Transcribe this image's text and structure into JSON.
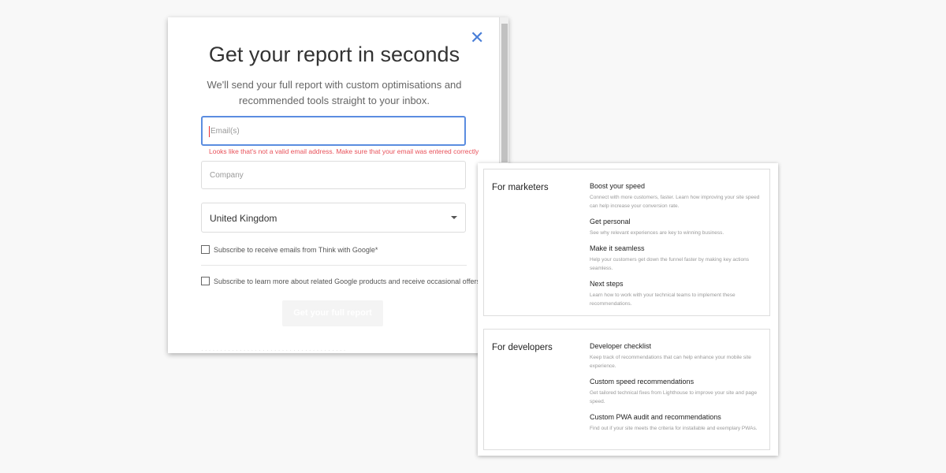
{
  "modal": {
    "title": "Get your report in seconds",
    "subtitle": "We'll send your full report with custom optimisations and recommended tools straight to your inbox.",
    "email_placeholder": "Email(s)",
    "email_error": "Looks like that's not a valid email address. Make sure that your email was entered correctly",
    "company_placeholder": "Company",
    "country": "United Kingdom",
    "checkbox1": "Subscribe to receive emails from Think with Google*",
    "checkbox2": "Subscribe to learn more about related Google products and receive occasional offers*",
    "submit": "Get your full report",
    "close_icon": "close-icon"
  },
  "marketers": {
    "label": "For marketers",
    "items": [
      {
        "title": "Boost your speed",
        "desc": "Connect with more customers, faster. Learn how improving your site speed can help increase your conversion rate."
      },
      {
        "title": "Get personal",
        "desc": "See why relevant experiences are key to winning business."
      },
      {
        "title": "Make it seamless",
        "desc": "Help your customers get down the funnel faster by making key actions seamless."
      },
      {
        "title": "Next steps",
        "desc": "Learn how to work with your technical teams to implement these recommendations."
      }
    ]
  },
  "developers": {
    "label": "For developers",
    "items": [
      {
        "title": "Developer checklist",
        "desc": "Keep track of recommendations that can help enhance your mobile site experience."
      },
      {
        "title": "Custom speed recommendations",
        "desc": "Get tailored technical fixes from Lighthouse to improve your site and page speed."
      },
      {
        "title": "Custom PWA audit and recommendations",
        "desc": "Find out if your site meets the criteria for installable and exemplary PWAs."
      }
    ]
  }
}
